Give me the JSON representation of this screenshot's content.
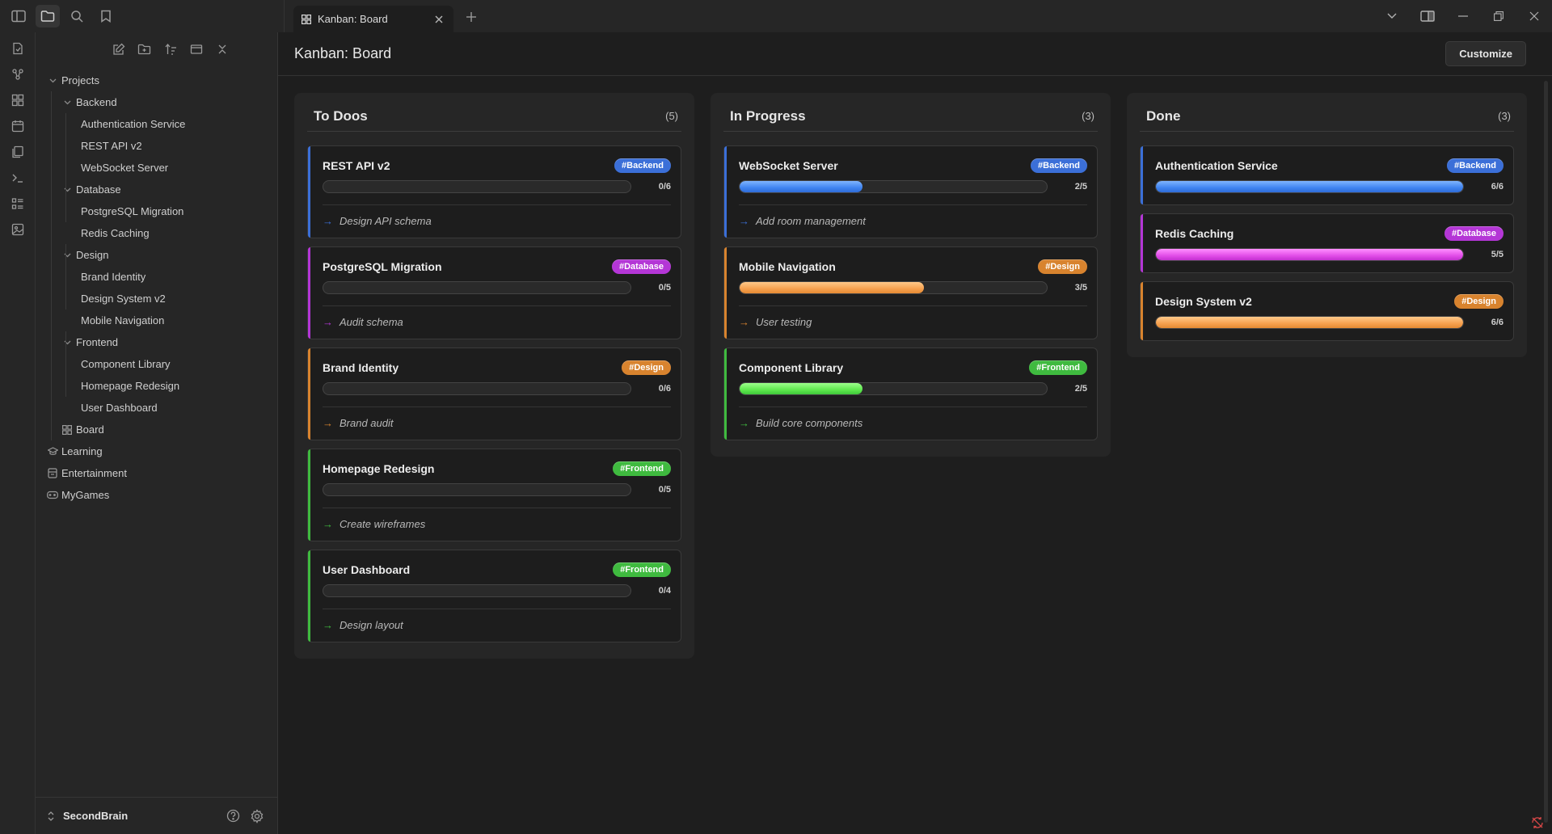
{
  "window": {
    "tab_title": "Kanban: Board",
    "colors": {
      "backend": "#3b6fd8",
      "database": "#b436d6",
      "design": "#d8832e",
      "frontend": "#3fba3f"
    }
  },
  "sidebar": {
    "tree": [
      {
        "label": "Projects",
        "level": 0,
        "chevron": true,
        "icon": ""
      },
      {
        "label": "Backend",
        "level": 1,
        "chevron": true,
        "icon": ""
      },
      {
        "label": "Authentication Service",
        "level": 2,
        "chevron": false,
        "icon": ""
      },
      {
        "label": "REST API v2",
        "level": 2,
        "chevron": false,
        "icon": ""
      },
      {
        "label": "WebSocket Server",
        "level": 2,
        "chevron": false,
        "icon": ""
      },
      {
        "label": "Database",
        "level": 1,
        "chevron": true,
        "icon": ""
      },
      {
        "label": "PostgreSQL Migration",
        "level": 2,
        "chevron": false,
        "icon": ""
      },
      {
        "label": "Redis Caching",
        "level": 2,
        "chevron": false,
        "icon": ""
      },
      {
        "label": "Design",
        "level": 1,
        "chevron": true,
        "icon": ""
      },
      {
        "label": "Brand Identity",
        "level": 2,
        "chevron": false,
        "icon": ""
      },
      {
        "label": "Design System v2",
        "level": 2,
        "chevron": false,
        "icon": ""
      },
      {
        "label": "Mobile Navigation",
        "level": 2,
        "chevron": false,
        "icon": ""
      },
      {
        "label": "Frontend",
        "level": 1,
        "chevron": true,
        "icon": ""
      },
      {
        "label": "Component Library",
        "level": 2,
        "chevron": false,
        "icon": ""
      },
      {
        "label": "Homepage Redesign",
        "level": 2,
        "chevron": false,
        "icon": ""
      },
      {
        "label": "User Dashboard",
        "level": 2,
        "chevron": false,
        "icon": ""
      },
      {
        "label": "Board",
        "level": 1,
        "chevron": false,
        "icon": "kanban-icon"
      },
      {
        "label": "Learning",
        "level": 0,
        "chevron": false,
        "icon": "graduation-cap-icon"
      },
      {
        "label": "Entertainment",
        "level": 0,
        "chevron": false,
        "icon": "ticket-icon"
      },
      {
        "label": "MyGames",
        "level": 0,
        "chevron": false,
        "icon": "gamepad-icon"
      }
    ],
    "vault_name": "SecondBrain"
  },
  "main": {
    "title": "Kanban: Board",
    "customize_label": "Customize",
    "columns": [
      {
        "title": "To Doos",
        "count": "(5)",
        "cards": [
          {
            "title": "REST API v2",
            "tag": "#Backend",
            "color": "backend",
            "done": 0,
            "total": 6,
            "progress_text": "0/6",
            "next_task": "Design API schema"
          },
          {
            "title": "PostgreSQL Migration",
            "tag": "#Database",
            "color": "database",
            "done": 0,
            "total": 5,
            "progress_text": "0/5",
            "next_task": "Audit schema"
          },
          {
            "title": "Brand Identity",
            "tag": "#Design",
            "color": "design",
            "done": 0,
            "total": 6,
            "progress_text": "0/6",
            "next_task": "Brand audit"
          },
          {
            "title": "Homepage Redesign",
            "tag": "#Frontend",
            "color": "frontend",
            "done": 0,
            "total": 5,
            "progress_text": "0/5",
            "next_task": "Create wireframes"
          },
          {
            "title": "User Dashboard",
            "tag": "#Frontend",
            "color": "frontend",
            "done": 0,
            "total": 4,
            "progress_text": "0/4",
            "next_task": "Design layout"
          }
        ]
      },
      {
        "title": "In Progress",
        "count": "(3)",
        "cards": [
          {
            "title": "WebSocket Server",
            "tag": "#Backend",
            "color": "backend",
            "done": 2,
            "total": 5,
            "progress_text": "2/5",
            "next_task": "Add room management"
          },
          {
            "title": "Mobile Navigation",
            "tag": "#Design",
            "color": "design",
            "done": 3,
            "total": 5,
            "progress_text": "3/5",
            "next_task": "User testing"
          },
          {
            "title": "Component Library",
            "tag": "#Frontend",
            "color": "frontend",
            "done": 2,
            "total": 5,
            "progress_text": "2/5",
            "next_task": "Build core components"
          }
        ]
      },
      {
        "title": "Done",
        "count": "(3)",
        "cards": [
          {
            "title": "Authentication Service",
            "tag": "#Backend",
            "color": "backend",
            "done": 6,
            "total": 6,
            "progress_text": "6/6",
            "next_task": ""
          },
          {
            "title": "Redis Caching",
            "tag": "#Database",
            "color": "database",
            "done": 5,
            "total": 5,
            "progress_text": "5/5",
            "next_task": ""
          },
          {
            "title": "Design System v2",
            "tag": "#Design",
            "color": "design",
            "done": 6,
            "total": 6,
            "progress_text": "6/6",
            "next_task": ""
          }
        ]
      }
    ]
  }
}
